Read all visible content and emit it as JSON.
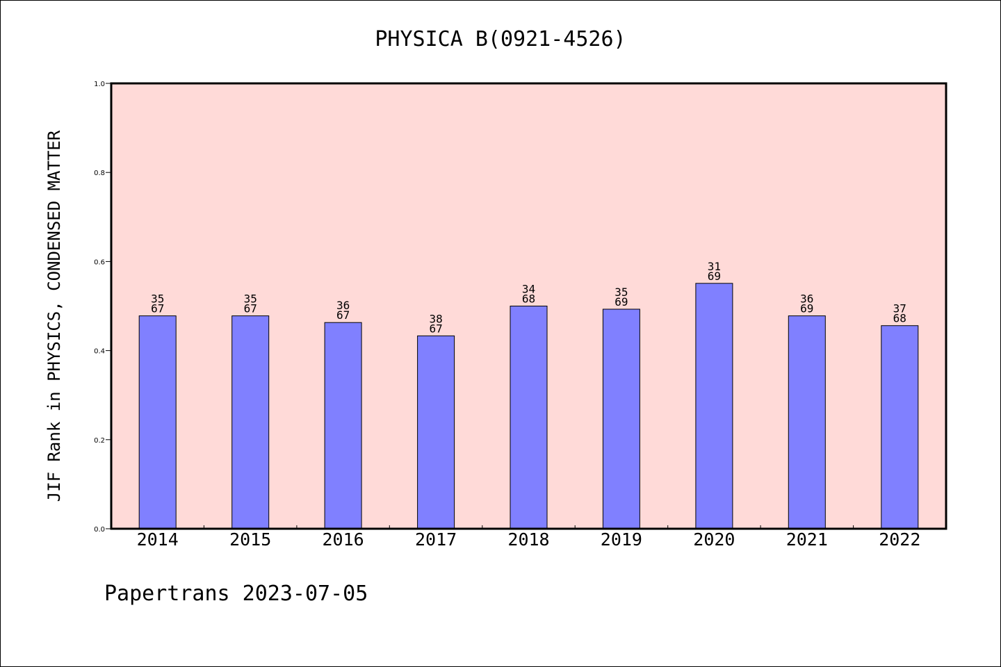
{
  "chart_data": {
    "type": "bar",
    "title": "PHYSICA B(0921-4526)",
    "ylabel": "JIF Rank in PHYSICS, CONDENSED MATTER",
    "xlabel": "",
    "ylim": [
      0,
      1.0
    ],
    "yticks": [
      "0.0",
      "0.2",
      "0.4",
      "0.6",
      "0.8",
      "1.0"
    ],
    "categories": [
      "2014",
      "2015",
      "2016",
      "2017",
      "2018",
      "2019",
      "2020",
      "2021",
      "2022"
    ],
    "values": [
      0.478,
      0.478,
      0.463,
      0.433,
      0.5,
      0.493,
      0.551,
      0.478,
      0.456
    ],
    "rank": [
      "35",
      "35",
      "36",
      "38",
      "34",
      "35",
      "31",
      "36",
      "37"
    ],
    "total": [
      "67",
      "67",
      "67",
      "67",
      "68",
      "69",
      "69",
      "69",
      "68"
    ],
    "grid": false,
    "colors": {
      "plot_background": "#FFDAD8",
      "bar_fill": "#8080FF",
      "bar_stroke": "#000000"
    }
  },
  "footer": {
    "text": "Papertrans 2023-07-05"
  }
}
